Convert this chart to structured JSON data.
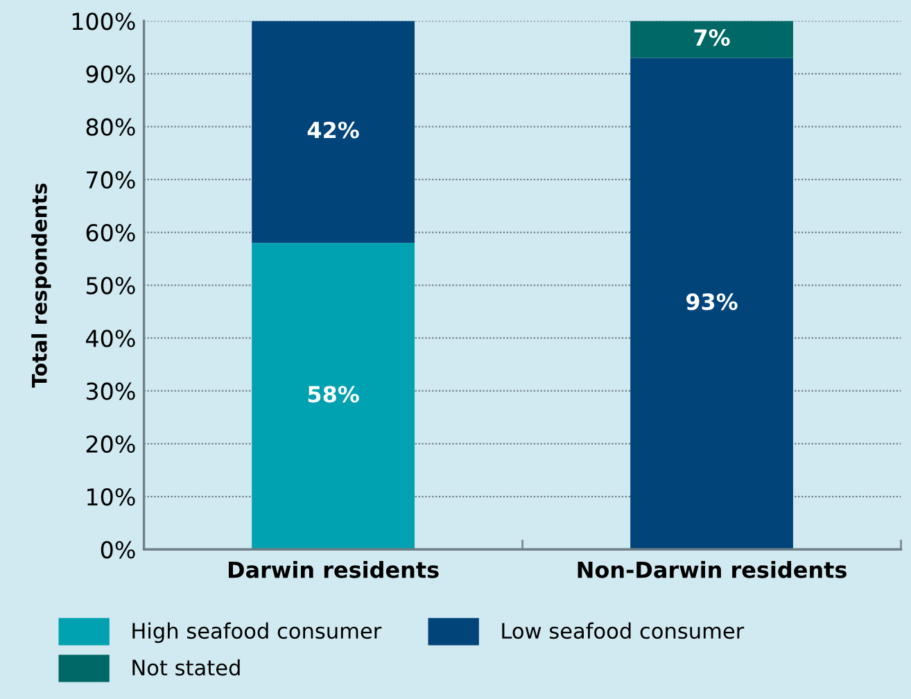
{
  "chart_data": {
    "type": "bar",
    "stacked": true,
    "ylabel": "Total respondents",
    "categories": [
      "Darwin residents",
      "Non-Darwin residents"
    ],
    "series": [
      {
        "name": "High seafood consumer",
        "color": "#00a1b0",
        "values": [
          58,
          0
        ],
        "value_labels": [
          "58%",
          null
        ]
      },
      {
        "name": "Low seafood consumer",
        "color": "#00447a",
        "values": [
          42,
          93
        ],
        "value_labels": [
          "42%",
          "93%"
        ]
      },
      {
        "name": "Not stated",
        "color": "#006866",
        "values": [
          0,
          7
        ],
        "value_labels": [
          null,
          "7%"
        ]
      }
    ],
    "ylim": [
      0,
      100
    ],
    "yticks": [
      {
        "value": 0,
        "label": "0%"
      },
      {
        "value": 10,
        "label": "10%"
      },
      {
        "value": 20,
        "label": "20%"
      },
      {
        "value": 30,
        "label": "30%"
      },
      {
        "value": 40,
        "label": "40%"
      },
      {
        "value": 50,
        "label": "50%"
      },
      {
        "value": 60,
        "label": "60%"
      },
      {
        "value": 70,
        "label": "70%"
      },
      {
        "value": 80,
        "label": "80%"
      },
      {
        "value": 90,
        "label": "90%"
      },
      {
        "value": 100,
        "label": "100%"
      }
    ],
    "grid": "y",
    "legend": "bottom"
  }
}
